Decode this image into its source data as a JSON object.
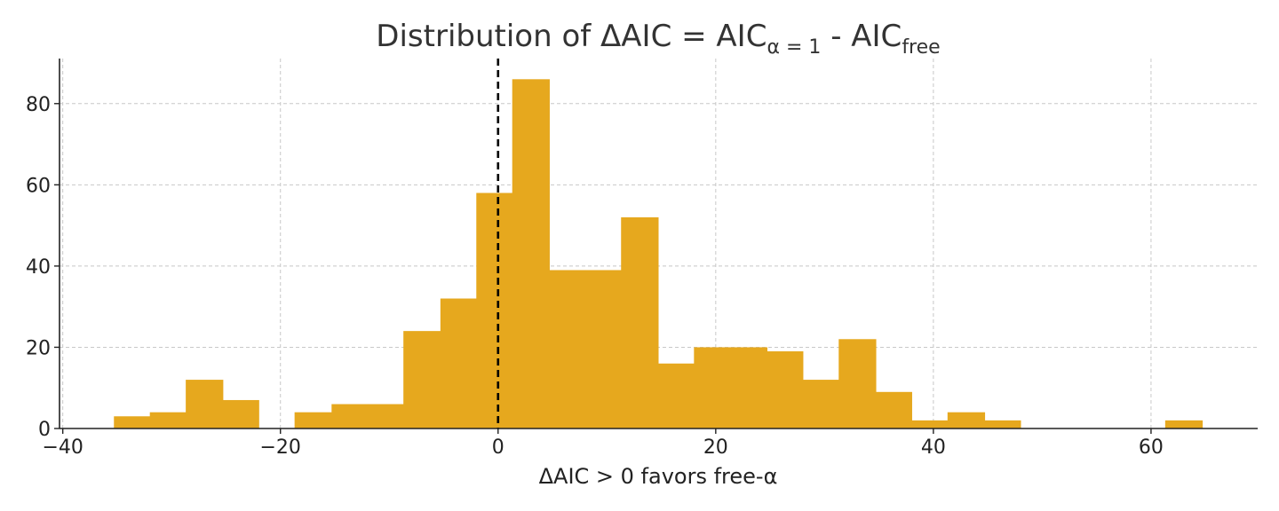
{
  "chart_data": {
    "type": "bar",
    "title": {
      "prefix": "Distribution of ΔAIC = AIC",
      "sub1": "α = 1",
      "middle": " - AIC",
      "sub2": "free"
    },
    "xlabel": "ΔAIC > 0 favors free-α",
    "ylabel": "",
    "xlim": [
      -40.3,
      69.8
    ],
    "ylim": [
      0,
      90
    ],
    "xticks": [
      {
        "value": -40,
        "label": "−40"
      },
      {
        "value": -20,
        "label": "−20"
      },
      {
        "value": 0,
        "label": "0"
      },
      {
        "value": 20,
        "label": "20"
      },
      {
        "value": 40,
        "label": "40"
      },
      {
        "value": 60,
        "label": "60"
      }
    ],
    "yticks": [
      {
        "value": 0,
        "label": "0"
      },
      {
        "value": 20,
        "label": "20"
      },
      {
        "value": 40,
        "label": "40"
      },
      {
        "value": 60,
        "label": "60"
      },
      {
        "value": 80,
        "label": "80"
      }
    ],
    "grid": true,
    "bar_color": "#e6a81e",
    "reference_line": {
      "x": 0,
      "style": "dashed",
      "color": "#000000"
    },
    "bins": [
      {
        "x0": -35.3,
        "x1": -32.0,
        "count": 3
      },
      {
        "x0": -32.0,
        "x1": -28.7,
        "count": 4
      },
      {
        "x0": -28.7,
        "x1": -25.3,
        "count": 12
      },
      {
        "x0": -25.3,
        "x1": -22.0,
        "count": 7
      },
      {
        "x0": -22.0,
        "x1": -18.7,
        "count": 0
      },
      {
        "x0": -18.7,
        "x1": -15.3,
        "count": 4
      },
      {
        "x0": -15.3,
        "x1": -12.0,
        "count": 6
      },
      {
        "x0": -12.0,
        "x1": -8.7,
        "count": 6
      },
      {
        "x0": -8.7,
        "x1": -5.3,
        "count": 24
      },
      {
        "x0": -5.3,
        "x1": -2.0,
        "count": 32
      },
      {
        "x0": -2.0,
        "x1": 1.3,
        "count": 58
      },
      {
        "x0": 1.3,
        "x1": 4.7,
        "count": 86
      },
      {
        "x0": 4.7,
        "x1": 8.0,
        "count": 39
      },
      {
        "x0": 8.0,
        "x1": 11.3,
        "count": 39
      },
      {
        "x0": 11.3,
        "x1": 14.7,
        "count": 52
      },
      {
        "x0": 14.7,
        "x1": 18.0,
        "count": 16
      },
      {
        "x0": 18.0,
        "x1": 21.3,
        "count": 20
      },
      {
        "x0": 21.3,
        "x1": 24.7,
        "count": 20
      },
      {
        "x0": 24.7,
        "x1": 28.0,
        "count": 19
      },
      {
        "x0": 28.0,
        "x1": 31.3,
        "count": 12
      },
      {
        "x0": 31.3,
        "x1": 34.7,
        "count": 22
      },
      {
        "x0": 34.7,
        "x1": 38.0,
        "count": 9
      },
      {
        "x0": 38.0,
        "x1": 41.3,
        "count": 2
      },
      {
        "x0": 41.3,
        "x1": 44.7,
        "count": 4
      },
      {
        "x0": 44.7,
        "x1": 48.0,
        "count": 2
      },
      {
        "x0": 48.0,
        "x1": 51.3,
        "count": 0
      },
      {
        "x0": 51.3,
        "x1": 54.7,
        "count": 0
      },
      {
        "x0": 54.7,
        "x1": 58.0,
        "count": 0
      },
      {
        "x0": 58.0,
        "x1": 61.3,
        "count": 0
      },
      {
        "x0": 61.3,
        "x1": 64.7,
        "count": 2
      }
    ]
  }
}
